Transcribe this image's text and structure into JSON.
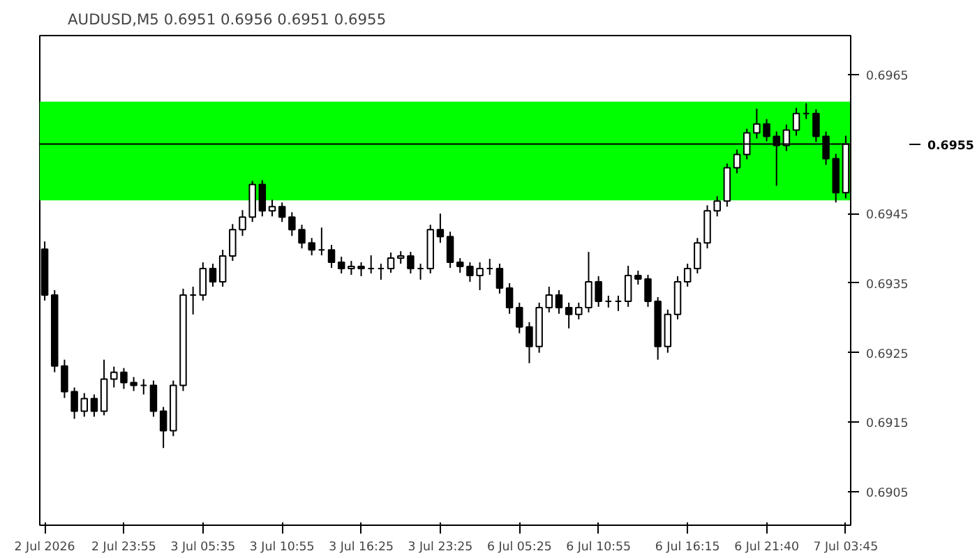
{
  "chart_data": {
    "type": "candlestick",
    "title": "AUDUSD,M5  0.6951 0.6956 0.6951 0.6955",
    "color": "#000000",
    "categories": [
      "2 Jul 2026",
      null,
      null,
      null,
      null,
      null,
      null,
      null,
      "2 Jul 23:55",
      null,
      null,
      null,
      null,
      null,
      null,
      null,
      "3 Jul 05:35",
      null,
      null,
      null,
      null,
      null,
      null,
      null,
      "3 Jul 10:55",
      null,
      null,
      null,
      null,
      null,
      null,
      null,
      "3 Jul 16:25",
      null,
      null,
      null,
      null,
      null,
      null,
      null,
      "3 Jul 23:25",
      null,
      null,
      null,
      null,
      null,
      null,
      null,
      "6 Jul 05:25",
      null,
      null,
      null,
      null,
      null,
      null,
      null,
      "6 Jul 10:55",
      null,
      null,
      null,
      null,
      null,
      null,
      null,
      null,
      "6 Jul 16:15",
      null,
      null,
      null,
      null,
      null,
      null,
      null,
      "6 Jul 21:40",
      null,
      null,
      null,
      null,
      null,
      null,
      null,
      "7 Jul 03:45"
    ],
    "ohlc": [
      [
        0.69399,
        0.6941,
        0.69325,
        0.69333
      ],
      [
        0.69333,
        0.6934,
        0.69222,
        0.69231
      ],
      [
        0.69231,
        0.6924,
        0.69185,
        0.69194
      ],
      [
        0.69194,
        0.692,
        0.69155,
        0.69166
      ],
      [
        0.69166,
        0.69192,
        0.69158,
        0.69184
      ],
      [
        0.69184,
        0.6919,
        0.69158,
        0.69166
      ],
      [
        0.69166,
        0.6924,
        0.6916,
        0.69212
      ],
      [
        0.69212,
        0.6923,
        0.692,
        0.69222
      ],
      [
        0.69222,
        0.69228,
        0.69198,
        0.69207
      ],
      [
        0.69207,
        0.69215,
        0.69195,
        0.69203
      ],
      [
        0.69203,
        0.69212,
        0.6919,
        0.69203
      ],
      [
        0.69203,
        0.6921,
        0.69158,
        0.69166
      ],
      [
        0.69166,
        0.69172,
        0.69113,
        0.69138
      ],
      [
        0.69138,
        0.6921,
        0.6913,
        0.69203
      ],
      [
        0.69203,
        0.69342,
        0.69195,
        0.69333
      ],
      [
        0.69333,
        0.69345,
        0.69305,
        0.69333
      ],
      [
        0.69333,
        0.6938,
        0.69325,
        0.69371
      ],
      [
        0.69371,
        0.69378,
        0.69345,
        0.69352
      ],
      [
        0.69352,
        0.69398,
        0.69345,
        0.69389
      ],
      [
        0.69389,
        0.69435,
        0.69382,
        0.69427
      ],
      [
        0.69427,
        0.69455,
        0.69418,
        0.69445
      ],
      [
        0.69445,
        0.69497,
        0.69438,
        0.69492
      ],
      [
        0.69492,
        0.69498,
        0.69446,
        0.69454
      ],
      [
        0.69454,
        0.6947,
        0.69446,
        0.6946
      ],
      [
        0.6946,
        0.69466,
        0.69438,
        0.69445
      ],
      [
        0.69445,
        0.69452,
        0.69418,
        0.69427
      ],
      [
        0.69427,
        0.69434,
        0.694,
        0.69408
      ],
      [
        0.69408,
        0.69415,
        0.6939,
        0.69398
      ],
      [
        0.69398,
        0.6943,
        0.6939,
        0.69398
      ],
      [
        0.69398,
        0.69405,
        0.69372,
        0.6938
      ],
      [
        0.6938,
        0.69388,
        0.69364,
        0.69371
      ],
      [
        0.69371,
        0.69382,
        0.69362,
        0.69374
      ],
      [
        0.69374,
        0.6938,
        0.6936,
        0.69371
      ],
      [
        0.69371,
        0.6939,
        0.69364,
        0.69371
      ],
      [
        0.69371,
        0.69378,
        0.69355,
        0.69371
      ],
      [
        0.69371,
        0.69394,
        0.69365,
        0.69386
      ],
      [
        0.69386,
        0.69396,
        0.69378,
        0.69389
      ],
      [
        0.69389,
        0.69395,
        0.69364,
        0.69371
      ],
      [
        0.69371,
        0.69378,
        0.69355,
        0.69371
      ],
      [
        0.69371,
        0.69434,
        0.69364,
        0.69427
      ],
      [
        0.69427,
        0.6945,
        0.69408,
        0.69417
      ],
      [
        0.69417,
        0.69424,
        0.69372,
        0.6938
      ],
      [
        0.6938,
        0.69386,
        0.69365,
        0.69374
      ],
      [
        0.69374,
        0.6938,
        0.69352,
        0.69361
      ],
      [
        0.69361,
        0.6938,
        0.6934,
        0.69371
      ],
      [
        0.69371,
        0.69385,
        0.69362,
        0.69371
      ],
      [
        0.69371,
        0.69378,
        0.69335,
        0.69343
      ],
      [
        0.69343,
        0.6935,
        0.69306,
        0.69315
      ],
      [
        0.69315,
        0.69322,
        0.69278,
        0.69287
      ],
      [
        0.69287,
        0.69294,
        0.69235,
        0.69259
      ],
      [
        0.69259,
        0.69322,
        0.6925,
        0.69315
      ],
      [
        0.69315,
        0.69345,
        0.69308,
        0.69333
      ],
      [
        0.69333,
        0.6934,
        0.69306,
        0.69315
      ],
      [
        0.69315,
        0.69322,
        0.69285,
        0.69305
      ],
      [
        0.69305,
        0.69322,
        0.69298,
        0.69315
      ],
      [
        0.69315,
        0.69395,
        0.69308,
        0.69352
      ],
      [
        0.69352,
        0.6936,
        0.69316,
        0.69324
      ],
      [
        0.69324,
        0.69332,
        0.69315,
        0.69324
      ],
      [
        0.69324,
        0.69332,
        0.6931,
        0.69324
      ],
      [
        0.69324,
        0.69375,
        0.69316,
        0.69361
      ],
      [
        0.69361,
        0.69368,
        0.69348,
        0.69356
      ],
      [
        0.69356,
        0.69362,
        0.69316,
        0.69324
      ],
      [
        0.69324,
        0.6933,
        0.6924,
        0.69259
      ],
      [
        0.69259,
        0.69312,
        0.6925,
        0.69305
      ],
      [
        0.69305,
        0.6936,
        0.69298,
        0.69352
      ],
      [
        0.69352,
        0.69378,
        0.69345,
        0.69371
      ],
      [
        0.69371,
        0.69415,
        0.69364,
        0.69408
      ],
      [
        0.69408,
        0.69462,
        0.694,
        0.69454
      ],
      [
        0.69454,
        0.69475,
        0.69446,
        0.69468
      ],
      [
        0.69468,
        0.69522,
        0.6946,
        0.69516
      ],
      [
        0.69516,
        0.69542,
        0.69508,
        0.69535
      ],
      [
        0.69535,
        0.69572,
        0.69528,
        0.69566
      ],
      [
        0.69566,
        0.69601,
        0.69558,
        0.69579
      ],
      [
        0.69579,
        0.69586,
        0.69554,
        0.69561
      ],
      [
        0.69561,
        0.69568,
        0.6949,
        0.69548
      ],
      [
        0.69548,
        0.69578,
        0.6954,
        0.6957
      ],
      [
        0.6957,
        0.69602,
        0.69562,
        0.69594
      ],
      [
        0.69594,
        0.69609,
        0.69586,
        0.69594
      ],
      [
        0.69594,
        0.696,
        0.69553,
        0.69561
      ],
      [
        0.69561,
        0.69568,
        0.6952,
        0.69529
      ],
      [
        0.69529,
        0.69536,
        0.69466,
        0.6948
      ],
      [
        0.6948,
        0.69562,
        0.69472,
        0.6955
      ]
    ],
    "ylim": [
      0.69002,
      0.69706
    ],
    "yticks": [
      0.6905,
      0.6915,
      0.6925,
      0.6935,
      0.6945,
      0.6965
    ],
    "ref_lines": [
      {
        "axis": "y",
        "value": 0.6955,
        "label": "0.6955",
        "color": "#000000"
      }
    ],
    "bands": [
      {
        "axis": "y",
        "from": 0.69469,
        "to": 0.69611,
        "color": "#00ff00"
      }
    ],
    "grid": false
  }
}
